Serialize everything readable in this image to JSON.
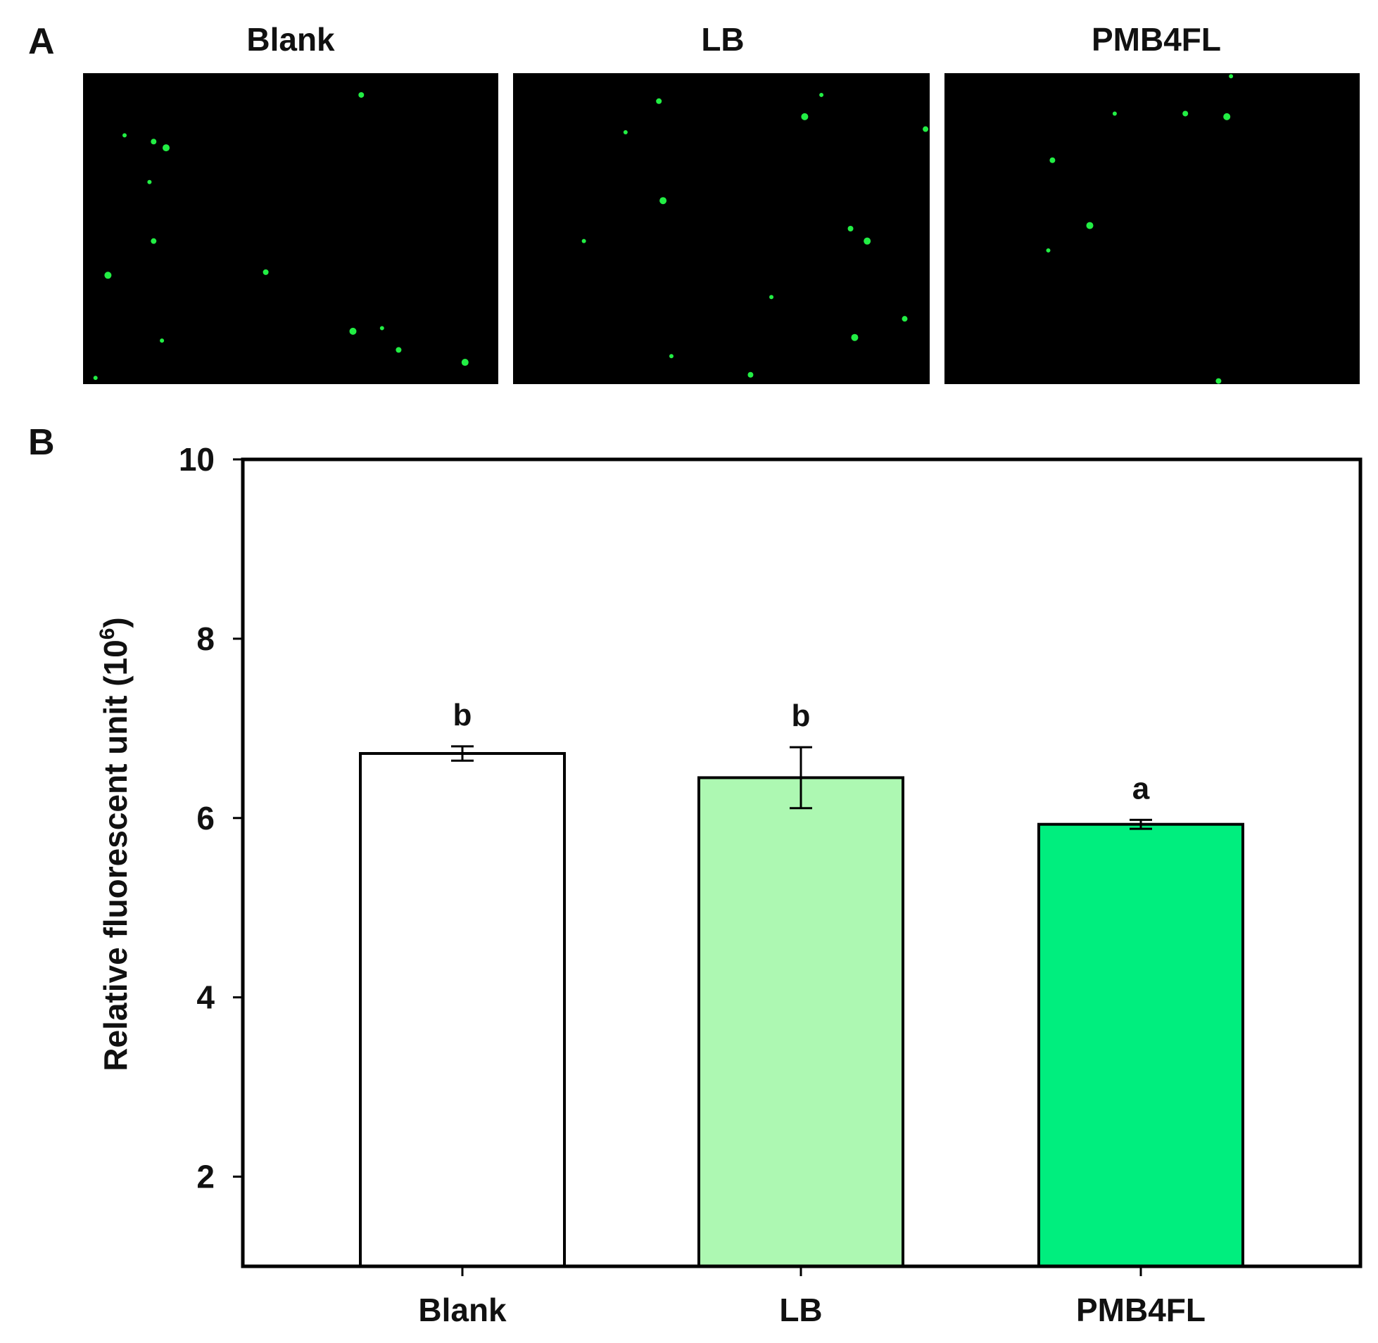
{
  "panel_a": {
    "label": "A",
    "images": [
      {
        "title": "Blank",
        "background": "#000000",
        "dot_color": "#22ee44"
      },
      {
        "title": "LB",
        "background": "#000000",
        "dot_color": "#22ee44"
      },
      {
        "title": "PMB4FL",
        "background": "#000000",
        "dot_color": "#22ee44"
      }
    ]
  },
  "chart_data": {
    "type": "bar",
    "panel_label": "B",
    "categories": [
      "Blank",
      "LB",
      "PMB4FL"
    ],
    "values": [
      6.72,
      6.45,
      5.93
    ],
    "errors": [
      0.08,
      0.34,
      0.05
    ],
    "significance": [
      "b",
      "b",
      "a"
    ],
    "bar_colors": [
      "#ffffff",
      "#adf8b2",
      "#00ee7e"
    ],
    "ylabel": "Relative fluorescent unit (10",
    "ylabel_sup": "6",
    "ylabel_end": ")",
    "ylim": [
      1,
      10
    ],
    "yticks": [
      2,
      4,
      6,
      8,
      10
    ],
    "grid": false
  }
}
